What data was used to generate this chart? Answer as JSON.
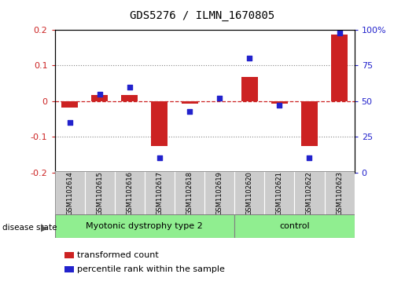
{
  "title": "GDS5276 / ILMN_1670805",
  "samples": [
    "GSM1102614",
    "GSM1102615",
    "GSM1102616",
    "GSM1102617",
    "GSM1102618",
    "GSM1102619",
    "GSM1102620",
    "GSM1102621",
    "GSM1102622",
    "GSM1102623"
  ],
  "transformed_count": [
    -0.018,
    0.018,
    0.018,
    -0.125,
    -0.008,
    0.0,
    0.068,
    -0.008,
    -0.125,
    0.188
  ],
  "percentile_rank": [
    35,
    55,
    60,
    10,
    43,
    52,
    80,
    47,
    10,
    98
  ],
  "groups": [
    {
      "label": "Myotonic dystrophy type 2",
      "start": 0,
      "end": 5,
      "color": "#90EE90"
    },
    {
      "label": "control",
      "start": 6,
      "end": 9,
      "color": "#90EE90"
    }
  ],
  "ylim_left": [
    -0.2,
    0.2
  ],
  "ylim_right": [
    0,
    100
  ],
  "y_ticks_left": [
    -0.2,
    -0.1,
    0.0,
    0.1,
    0.2
  ],
  "y_ticks_right": [
    0,
    25,
    50,
    75,
    100
  ],
  "bar_color": "#CC2222",
  "dot_color": "#2222CC",
  "zero_line_color": "#CC2222",
  "grid_color": "#888888",
  "label_box_color": "#CCCCCC",
  "disease_state_label": "disease state",
  "legend_bar_label": "transformed count",
  "legend_dot_label": "percentile rank within the sample",
  "title_fontsize": 10,
  "tick_fontsize": 8,
  "sample_fontsize": 6,
  "label_fontsize": 8
}
